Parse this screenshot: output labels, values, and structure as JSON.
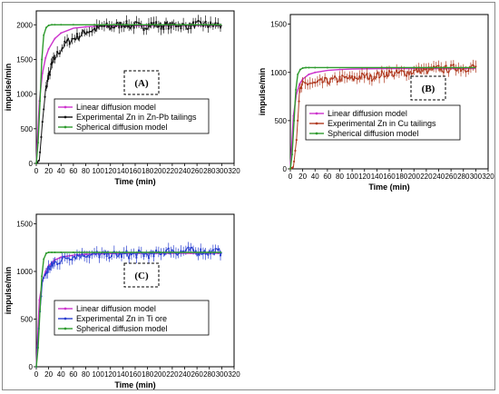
{
  "colors": {
    "linear": "#cc33cc",
    "spherical": "#2e9b2e",
    "expA": "#111111",
    "expB": "#b03a20",
    "expC": "#2a3fd0"
  },
  "chart_data": [
    {
      "type": "line",
      "label": "(A)",
      "xlabel": "Time (min)",
      "ylabel": "impulse/min",
      "xlim": [
        0,
        320
      ],
      "ylim": [
        0,
        2200
      ],
      "xticks": [
        0,
        20,
        40,
        60,
        80,
        100,
        120,
        140,
        160,
        180,
        200,
        220,
        240,
        260,
        280,
        300,
        320
      ],
      "yticks": [
        0,
        500,
        1000,
        1500,
        2000
      ],
      "legend_position": "center-right",
      "series": [
        {
          "name": "Linear diffusion model",
          "color_key": "linear",
          "x": [
            0,
            5,
            10,
            15,
            20,
            30,
            40,
            60,
            80,
            100,
            150,
            200,
            250,
            300
          ],
          "y": [
            0,
            900,
            1300,
            1520,
            1650,
            1800,
            1880,
            1950,
            1970,
            1980,
            1985,
            1990,
            1990,
            1990
          ]
        },
        {
          "name": "Experimental Zn in Zn-Pb tailings",
          "color_key": "expA",
          "x": [
            0,
            5,
            10,
            15,
            20,
            25,
            30,
            40,
            50,
            60,
            70,
            80,
            90,
            100,
            110,
            120,
            130,
            140,
            150,
            160,
            170,
            180,
            190,
            200,
            210,
            220,
            230,
            240,
            250,
            260,
            270,
            280,
            290,
            300
          ],
          "y": [
            0,
            50,
            600,
            1050,
            1250,
            1420,
            1520,
            1650,
            1750,
            1800,
            1840,
            1900,
            1920,
            1950,
            1980,
            1960,
            1990,
            2020,
            1980,
            2000,
            1970,
            1990,
            2010,
            1980,
            2000,
            1990,
            2010,
            1980,
            1990,
            2000,
            2010,
            1990,
            2000,
            1990
          ]
        },
        {
          "name": "Spherical diffusion model",
          "color_key": "spherical",
          "x": [
            0,
            3,
            6,
            9,
            12,
            16,
            20,
            25,
            30,
            40,
            60,
            100,
            200,
            300
          ],
          "y": [
            0,
            300,
            900,
            1500,
            1850,
            1960,
            1990,
            2000,
            2000,
            2000,
            2000,
            2000,
            2000,
            2000
          ]
        }
      ]
    },
    {
      "type": "line",
      "label": "(B)",
      "xlabel": "Time (min)",
      "ylabel": "impulse/min",
      "xlim": [
        0,
        320
      ],
      "ylim": [
        0,
        1600
      ],
      "xticks": [
        0,
        20,
        40,
        60,
        80,
        100,
        120,
        140,
        160,
        180,
        200,
        220,
        240,
        260,
        280,
        300,
        320
      ],
      "yticks": [
        0,
        500,
        1000,
        1500
      ],
      "legend_position": "center-right",
      "series": [
        {
          "name": "Linear diffusion model",
          "color_key": "linear",
          "x": [
            0,
            5,
            10,
            15,
            20,
            30,
            40,
            60,
            80,
            100,
            150,
            200,
            250,
            300
          ],
          "y": [
            0,
            550,
            780,
            880,
            930,
            980,
            1000,
            1020,
            1030,
            1035,
            1040,
            1040,
            1040,
            1040
          ]
        },
        {
          "name": "Experimental Zn in Cu tailings",
          "color_key": "expB",
          "x": [
            0,
            5,
            10,
            15,
            20,
            30,
            40,
            50,
            60,
            70,
            80,
            90,
            100,
            110,
            120,
            130,
            140,
            150,
            160,
            170,
            180,
            190,
            200,
            210,
            220,
            230,
            240,
            250,
            260,
            270,
            280,
            290,
            300
          ],
          "y": [
            0,
            20,
            300,
            800,
            870,
            890,
            880,
            900,
            910,
            920,
            930,
            940,
            930,
            950,
            960,
            950,
            970,
            980,
            990,
            980,
            1000,
            1000,
            1010,
            1020,
            1010,
            1030,
            1040,
            1030,
            1040,
            1050,
            1040,
            1050,
            1060
          ]
        },
        {
          "name": "Spherical diffusion model",
          "color_key": "spherical",
          "x": [
            0,
            3,
            6,
            9,
            12,
            16,
            20,
            25,
            30,
            40,
            60,
            100,
            200,
            300
          ],
          "y": [
            0,
            150,
            500,
            820,
            980,
            1030,
            1045,
            1050,
            1050,
            1050,
            1050,
            1050,
            1050,
            1050
          ]
        }
      ]
    },
    {
      "type": "line",
      "label": "(C)",
      "xlabel": "Time (min)",
      "ylabel": "impulse/min",
      "xlim": [
        0,
        320
      ],
      "ylim": [
        0,
        1600
      ],
      "xticks": [
        0,
        20,
        40,
        60,
        80,
        100,
        120,
        140,
        160,
        180,
        200,
        220,
        240,
        260,
        280,
        300,
        320
      ],
      "yticks": [
        0,
        500,
        1000,
        1500
      ],
      "legend_position": "center-right",
      "series": [
        {
          "name": "Linear diffusion model",
          "color_key": "linear",
          "x": [
            0,
            5,
            10,
            15,
            20,
            30,
            40,
            60,
            80,
            100,
            150,
            200,
            250,
            300
          ],
          "y": [
            0,
            700,
            900,
            1000,
            1060,
            1120,
            1150,
            1170,
            1180,
            1185,
            1190,
            1190,
            1190,
            1190
          ]
        },
        {
          "name": "Experimental Zn in Ti ore",
          "color_key": "expC",
          "x": [
            0,
            5,
            10,
            15,
            20,
            25,
            30,
            40,
            50,
            60,
            70,
            80,
            90,
            100,
            110,
            120,
            130,
            140,
            150,
            160,
            170,
            180,
            190,
            200,
            210,
            220,
            230,
            240,
            250,
            260,
            270,
            280,
            290,
            300
          ],
          "y": [
            0,
            500,
            900,
            980,
            1030,
            1060,
            1090,
            1120,
            1150,
            1160,
            1170,
            1180,
            1170,
            1180,
            1175,
            1180,
            1170,
            1180,
            1175,
            1180,
            1185,
            1180,
            1175,
            1200,
            1210,
            1220,
            1200,
            1210,
            1220,
            1200,
            1210,
            1200,
            1210,
            1200
          ]
        },
        {
          "name": "Spherical diffusion model",
          "color_key": "spherical",
          "x": [
            0,
            3,
            6,
            9,
            12,
            16,
            20,
            25,
            30,
            40,
            60,
            100,
            200,
            300
          ],
          "y": [
            0,
            200,
            600,
            950,
            1130,
            1190,
            1200,
            1200,
            1200,
            1200,
            1200,
            1200,
            1200,
            1200
          ]
        }
      ]
    }
  ]
}
